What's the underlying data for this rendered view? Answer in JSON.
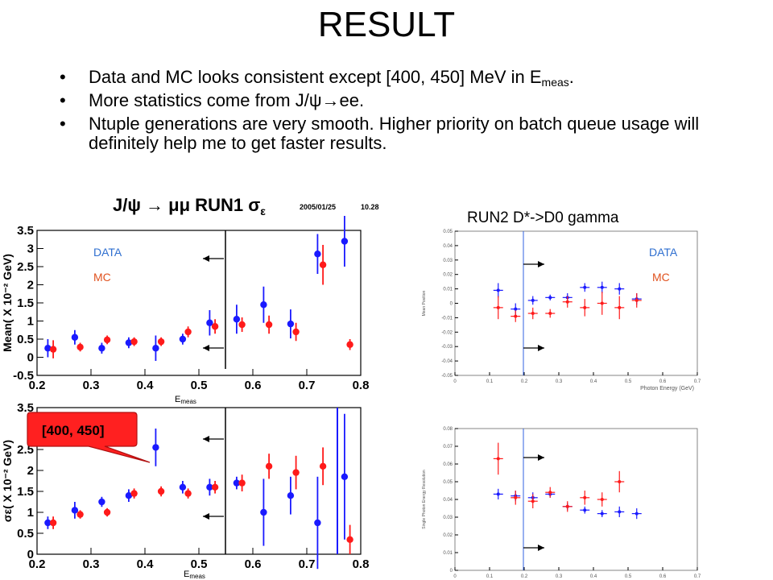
{
  "title": "RESULT",
  "bullets": [
    {
      "pre": "Data and MC looks consistent except [400, 450] MeV in E",
      "sub": "meas",
      "post": "."
    },
    {
      "pre": "More statistics come from J/ψ→ee.",
      "sub": "",
      "post": ""
    },
    {
      "pre": "Ntuple generations are very smooth. Higher priority on batch queue usage will definitely help me to get faster results.",
      "sub": "",
      "post": ""
    }
  ],
  "run1_header": {
    "prefix": "J/ψ → μμ  RUN1  σ",
    "subscript": "ε",
    "date": "2005/01/25",
    "time": "10.28"
  },
  "run2_header": "RUN2 D*->D0 gamma",
  "emeas_label": {
    "main": "E",
    "sub": "meas"
  },
  "callout": "[400, 450]",
  "legend": {
    "data": "DATA",
    "mc": "MC"
  },
  "colors": {
    "data": "#1a1aff",
    "mc": "#ff1a1a",
    "legend_data": "#2f6fd0",
    "legend_mc": "#e0521f",
    "callout": "#ff2020",
    "cut": "#3060e0"
  },
  "chart_data": [
    {
      "id": "run1-mean",
      "type": "scatter",
      "ylabel": "Mean( X 10⁻² GeV)",
      "xlim": [
        0.2,
        0.8
      ],
      "ylim": [
        -0.5,
        3.5
      ],
      "xticks": [
        "0.2",
        "0.3",
        "0.4",
        "0.5",
        "0.6",
        "0.7",
        "0.8"
      ],
      "yticks": [
        "-0.5",
        "0",
        "0.5",
        "1",
        "1.5",
        "2",
        "2.5",
        "3",
        "3.5"
      ],
      "series": [
        {
          "name": "DATA",
          "points": [
            [
              0.22,
              0.25,
              0.25
            ],
            [
              0.27,
              0.55,
              0.2
            ],
            [
              0.32,
              0.25,
              0.15
            ],
            [
              0.37,
              0.4,
              0.15
            ],
            [
              0.42,
              0.25,
              0.35
            ],
            [
              0.47,
              0.5,
              0.15
            ],
            [
              0.52,
              0.95,
              0.35
            ],
            [
              0.57,
              1.05,
              0.4
            ],
            [
              0.62,
              1.45,
              0.5
            ],
            [
              0.67,
              0.92,
              0.4
            ],
            [
              0.72,
              2.85,
              0.55
            ],
            [
              0.77,
              3.2,
              0.7
            ]
          ]
        },
        {
          "name": "MC",
          "points": [
            [
              0.23,
              0.22,
              0.25
            ],
            [
              0.28,
              0.28,
              0.12
            ],
            [
              0.33,
              0.48,
              0.12
            ],
            [
              0.38,
              0.43,
              0.12
            ],
            [
              0.43,
              0.43,
              0.12
            ],
            [
              0.48,
              0.7,
              0.15
            ],
            [
              0.53,
              0.85,
              0.2
            ],
            [
              0.58,
              0.9,
              0.2
            ],
            [
              0.63,
              0.9,
              0.25
            ],
            [
              0.68,
              0.7,
              0.25
            ],
            [
              0.73,
              2.55,
              0.55
            ],
            [
              0.78,
              0.35,
              0.15
            ]
          ]
        }
      ]
    },
    {
      "id": "run1-sigma",
      "type": "scatter",
      "ylabel": "σε( X 10⁻² GeV)",
      "xlim": [
        0.2,
        0.8
      ],
      "ylim": [
        0,
        3.5
      ],
      "xticks": [
        "0.2",
        "0.3",
        "0.4",
        "0.5",
        "0.6",
        "0.7",
        "0.8"
      ],
      "yticks": [
        "0",
        "0.5",
        "1",
        "1.5",
        "2",
        "2.5",
        "3",
        "3.5"
      ],
      "series": [
        {
          "name": "DATA",
          "points": [
            [
              0.22,
              0.75,
              0.15
            ],
            [
              0.27,
              1.05,
              0.2
            ],
            [
              0.32,
              1.25,
              0.12
            ],
            [
              0.37,
              1.4,
              0.15
            ],
            [
              0.42,
              2.55,
              0.45
            ],
            [
              0.47,
              1.6,
              0.15
            ],
            [
              0.52,
              1.6,
              0.2
            ],
            [
              0.57,
              1.7,
              0.15
            ],
            [
              0.62,
              1.0,
              0.8
            ],
            [
              0.67,
              1.4,
              0.45
            ],
            [
              0.72,
              0.75,
              1.1
            ],
            [
              0.77,
              1.85,
              1.5
            ]
          ]
        },
        {
          "name": "MC",
          "points": [
            [
              0.23,
              0.75,
              0.15
            ],
            [
              0.28,
              0.95,
              0.1
            ],
            [
              0.33,
              1.0,
              0.1
            ],
            [
              0.38,
              1.45,
              0.12
            ],
            [
              0.43,
              1.5,
              0.12
            ],
            [
              0.48,
              1.45,
              0.12
            ],
            [
              0.53,
              1.6,
              0.15
            ],
            [
              0.58,
              1.7,
              0.2
            ],
            [
              0.63,
              2.1,
              0.3
            ],
            [
              0.68,
              1.95,
              0.4
            ],
            [
              0.73,
              2.1,
              0.45
            ],
            [
              0.78,
              0.35,
              0.35
            ]
          ]
        }
      ]
    },
    {
      "id": "run2-mean",
      "type": "scatter",
      "ylabel": "Mean Position",
      "xlabel": "Photon Energy (GeV)",
      "xlim": [
        0,
        0.7
      ],
      "ylim": [
        -0.05,
        0.05
      ],
      "xticks": [
        "0",
        "0.1",
        "0.2",
        "0.3",
        "0.4",
        "0.5",
        "0.6",
        "0.7"
      ],
      "yticks": [
        "-0.05",
        "-0.04",
        "-0.03",
        "-0.02",
        "-0.01",
        "0",
        "0.01",
        "0.02",
        "0.03",
        "0.04",
        "0.05"
      ],
      "series": [
        {
          "name": "DATA",
          "points": [
            [
              0.125,
              0.009,
              0.005
            ],
            [
              0.175,
              -0.004,
              0.004
            ],
            [
              0.225,
              0.002,
              0.003
            ],
            [
              0.275,
              0.004,
              0.002
            ],
            [
              0.325,
              0.004,
              0.003
            ],
            [
              0.375,
              0.011,
              0.003
            ],
            [
              0.425,
              0.011,
              0.004
            ],
            [
              0.475,
              0.01,
              0.004
            ],
            [
              0.525,
              0.003,
              0.004
            ]
          ]
        },
        {
          "name": "MC",
          "points": [
            [
              0.125,
              -0.003,
              0.008
            ],
            [
              0.175,
              -0.009,
              0.004
            ],
            [
              0.225,
              -0.007,
              0.004
            ],
            [
              0.275,
              -0.007,
              0.003
            ],
            [
              0.325,
              0.001,
              0.004
            ],
            [
              0.375,
              -0.003,
              0.006
            ],
            [
              0.425,
              0.0,
              0.008
            ],
            [
              0.475,
              -0.003,
              0.008
            ],
            [
              0.525,
              0.002,
              0.005
            ]
          ]
        }
      ]
    },
    {
      "id": "run2-resolution",
      "type": "scatter",
      "ylabel": "Single Photon Energy Resolution",
      "xlim": [
        0,
        0.7
      ],
      "ylim": [
        0,
        0.08
      ],
      "xticks": [
        "0",
        "0.1",
        "0.2",
        "0.3",
        "0.4",
        "0.5",
        "0.6",
        "0.7"
      ],
      "yticks": [
        "0",
        "0.01",
        "0.02",
        "0.03",
        "0.04",
        "0.05",
        "0.06",
        "0.07",
        "0.08"
      ],
      "series": [
        {
          "name": "DATA",
          "points": [
            [
              0.125,
              0.043,
              0.003
            ],
            [
              0.175,
              0.042,
              0.003
            ],
            [
              0.225,
              0.041,
              0.003
            ],
            [
              0.275,
              0.043,
              0.002
            ],
            [
              0.325,
              0.036,
              0.002
            ],
            [
              0.375,
              0.034,
              0.002
            ],
            [
              0.425,
              0.032,
              0.002
            ],
            [
              0.475,
              0.033,
              0.003
            ],
            [
              0.525,
              0.032,
              0.003
            ]
          ]
        },
        {
          "name": "MC",
          "points": [
            [
              0.125,
              0.063,
              0.009
            ],
            [
              0.175,
              0.041,
              0.004
            ],
            [
              0.225,
              0.039,
              0.004
            ],
            [
              0.275,
              0.044,
              0.003
            ],
            [
              0.325,
              0.036,
              0.003
            ],
            [
              0.375,
              0.041,
              0.004
            ],
            [
              0.425,
              0.04,
              0.004
            ],
            [
              0.475,
              0.05,
              0.006
            ]
          ]
        }
      ]
    }
  ]
}
